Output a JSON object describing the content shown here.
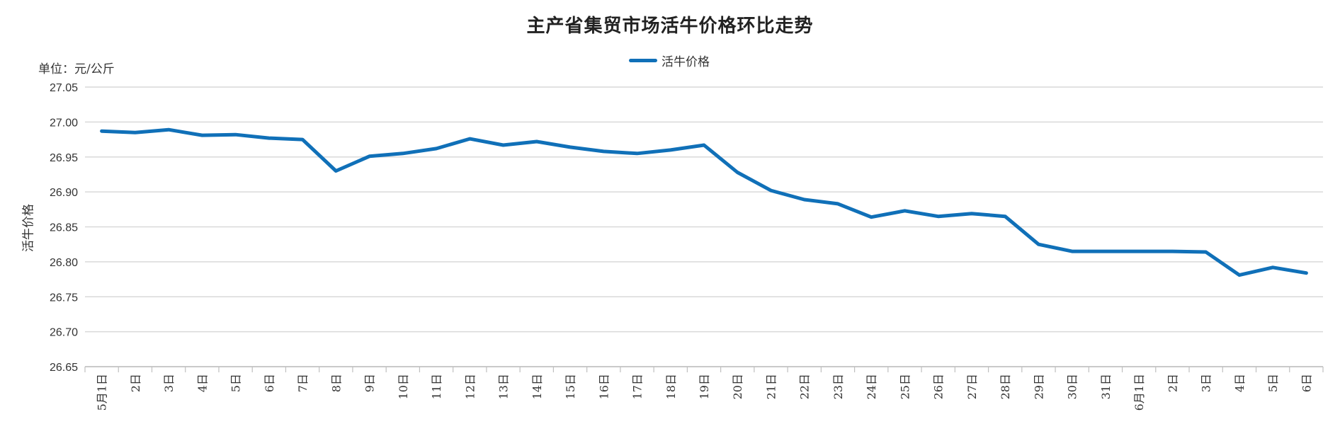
{
  "chart_data": {
    "type": "line",
    "title": "主产省集贸市场活牛价格环比走势",
    "unit_label": "单位：元/公斤",
    "ylabel": "活牛价格",
    "xlabel": "",
    "ylim": [
      26.65,
      27.05
    ],
    "yticks": [
      "27.05",
      "27.00",
      "26.95",
      "26.90",
      "26.85",
      "26.80",
      "26.75",
      "26.70",
      "26.65"
    ],
    "grid": true,
    "legend_position": "top-center",
    "categories": [
      "5月1日",
      "2日",
      "3日",
      "4日",
      "5日",
      "6日",
      "7日",
      "8日",
      "9日",
      "10日",
      "11日",
      "12日",
      "13日",
      "14日",
      "15日",
      "16日",
      "17日",
      "18日",
      "19日",
      "20日",
      "21日",
      "22日",
      "23日",
      "24日",
      "25日",
      "26日",
      "27日",
      "28日",
      "29日",
      "30日",
      "31日",
      "6月1日",
      "2日",
      "3日",
      "4日",
      "5日",
      "6日"
    ],
    "series": [
      {
        "name": "活牛价格",
        "color": "#1070b8",
        "values": [
          26.987,
          26.985,
          26.989,
          26.981,
          26.982,
          26.977,
          26.975,
          26.93,
          26.951,
          26.955,
          26.962,
          26.976,
          26.967,
          26.972,
          26.964,
          26.958,
          26.955,
          26.96,
          26.967,
          26.928,
          26.902,
          26.889,
          26.883,
          26.864,
          26.873,
          26.865,
          26.869,
          26.865,
          26.825,
          26.815,
          26.815,
          26.815,
          26.815,
          26.814,
          26.781,
          26.792,
          26.784
        ]
      }
    ]
  }
}
